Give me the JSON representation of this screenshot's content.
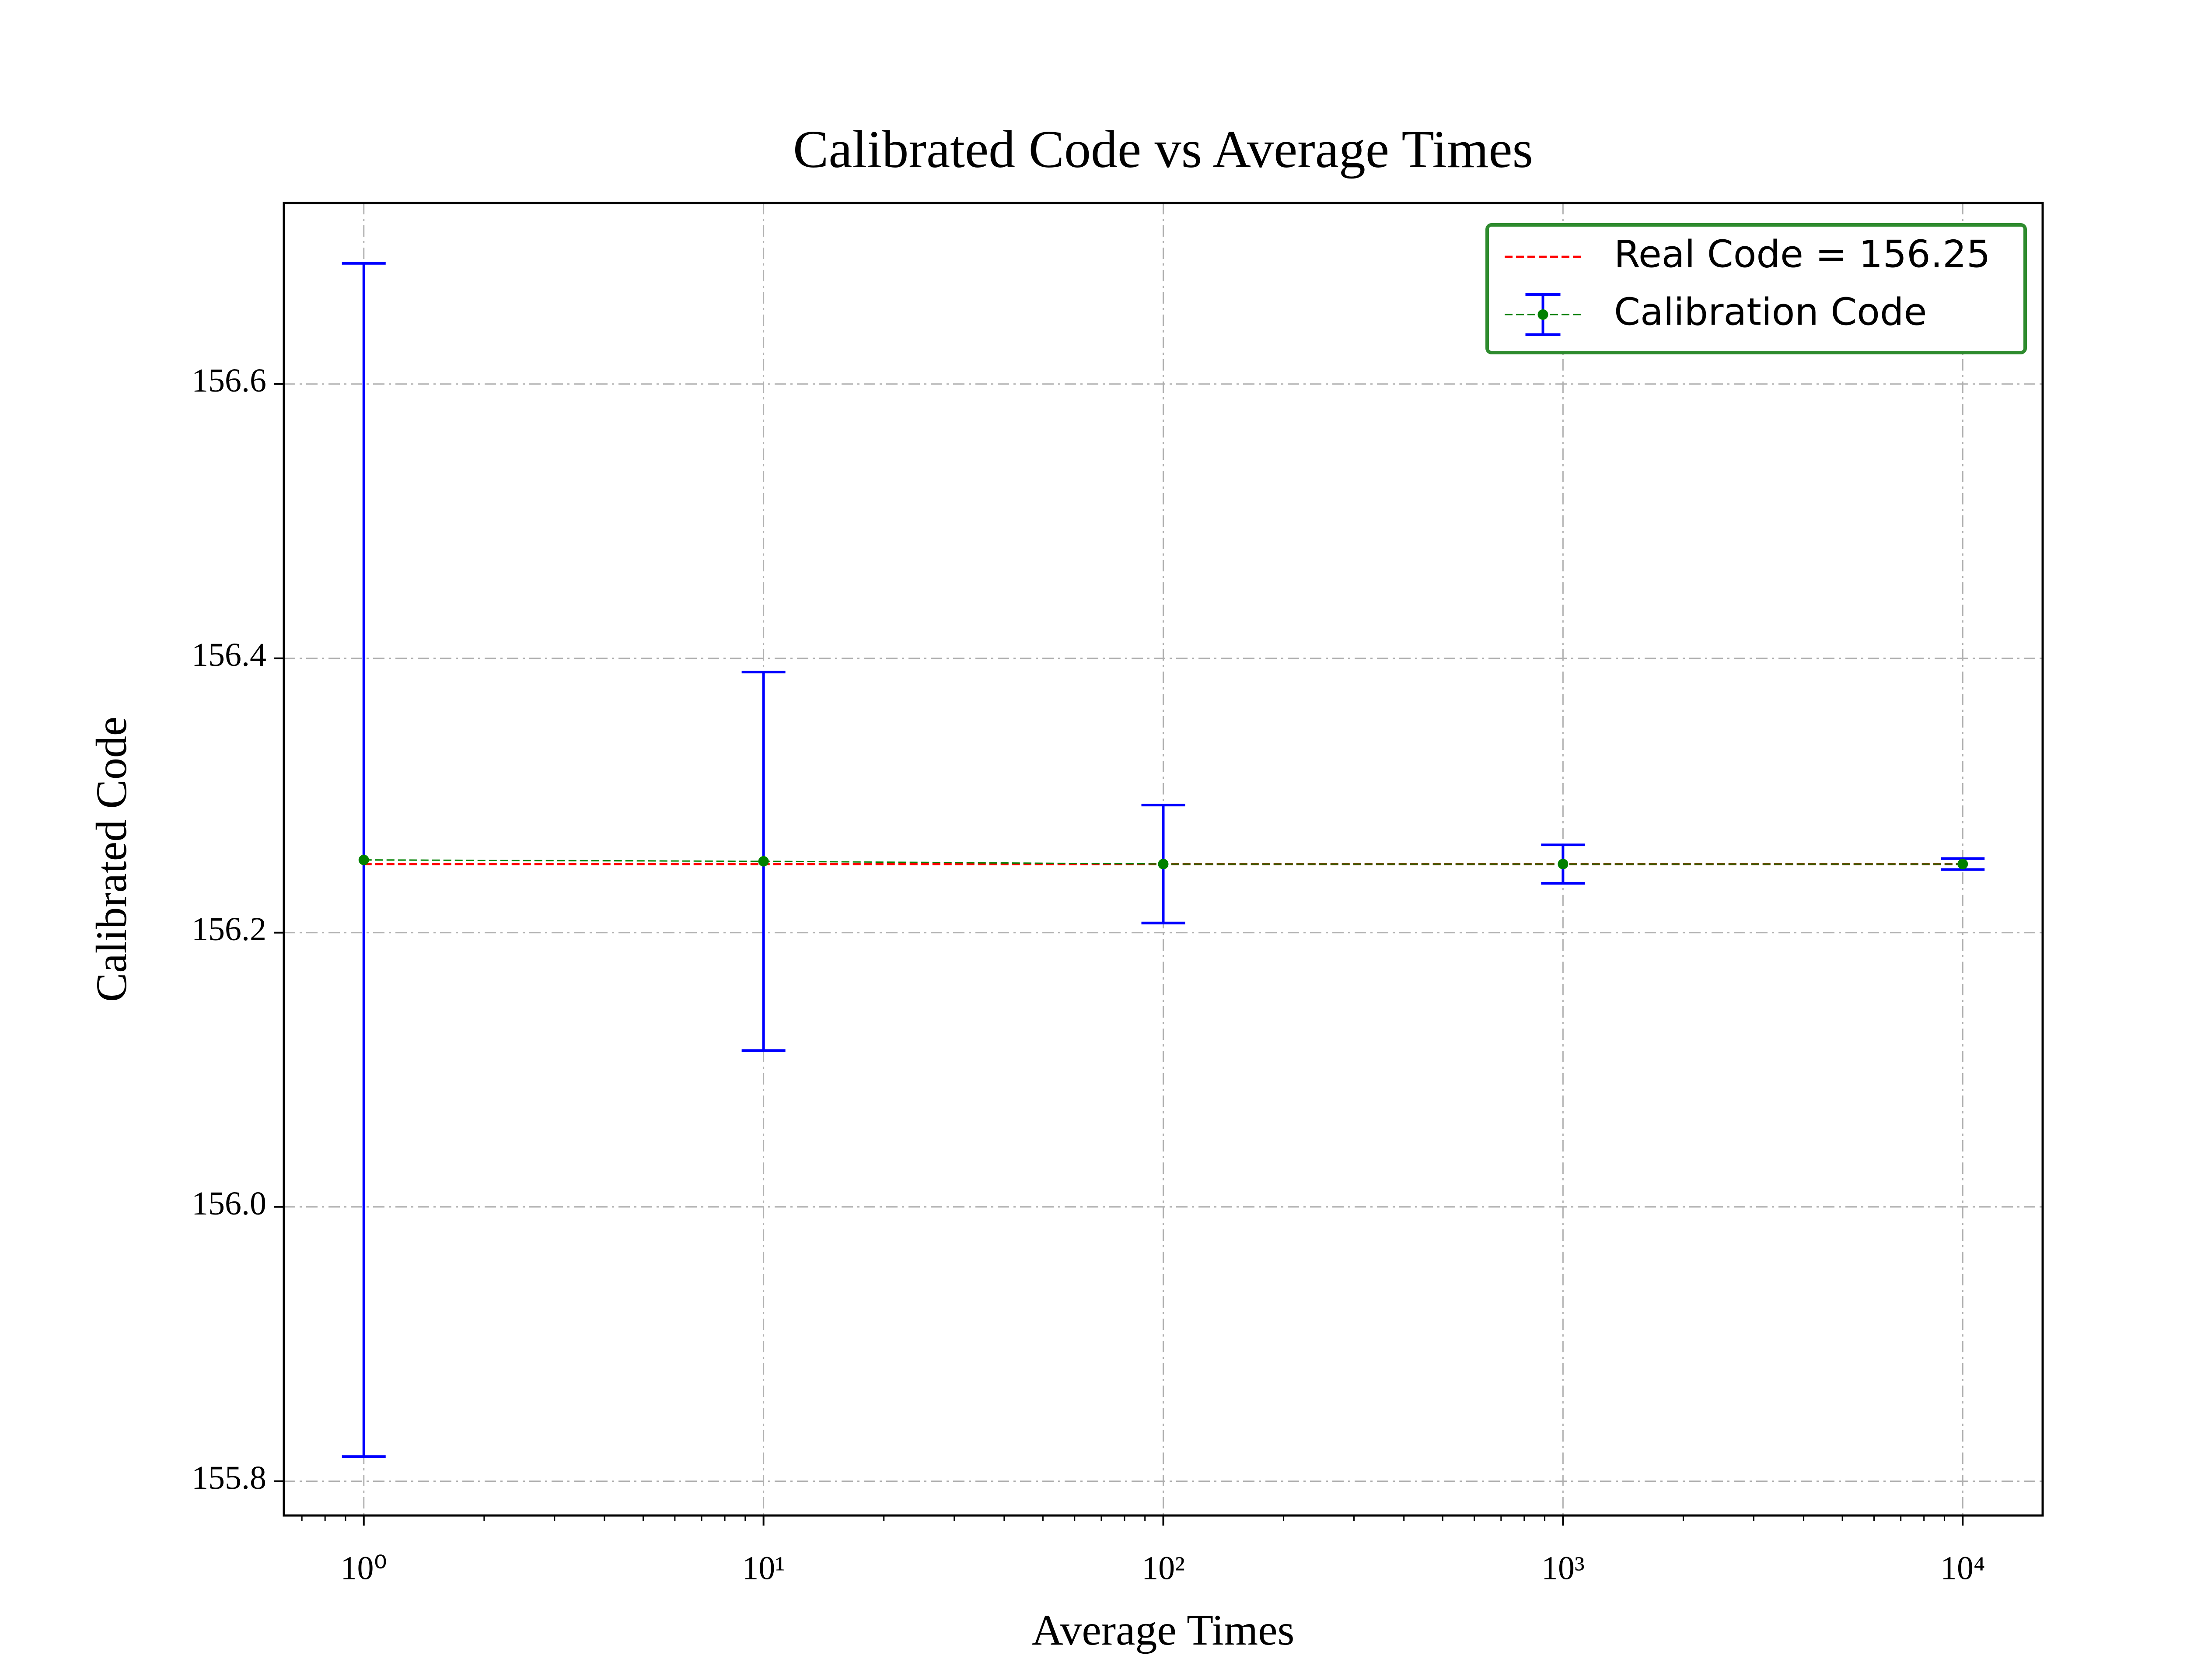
{
  "chart_data": {
    "type": "errorbar",
    "title": "Calibrated Code vs Average Times",
    "x_label": "Average Times",
    "y_label": "Calibrated Code",
    "xscale": "log",
    "grid": true,
    "legend": "upper right",
    "legend_edge_color": "#2e8b2e",
    "xlim": [
      0.631,
      15849
    ],
    "ylim": [
      155.775,
      156.732
    ],
    "xticks": [
      {
        "value": 1,
        "label": "10⁰"
      },
      {
        "value": 10,
        "label": "10¹"
      },
      {
        "value": 100,
        "label": "10²"
      },
      {
        "value": 1000,
        "label": "10³"
      },
      {
        "value": 10000,
        "label": "10⁴"
      }
    ],
    "xminorticks": [
      0.7,
      0.8,
      0.9,
      2,
      3,
      4,
      5,
      6,
      7,
      8,
      9,
      20,
      30,
      40,
      50,
      60,
      70,
      80,
      90,
      200,
      300,
      400,
      500,
      600,
      700,
      800,
      900,
      2000,
      3000,
      4000,
      5000,
      6000,
      7000,
      8000,
      9000
    ],
    "yticks": [
      155.8,
      {
        "value": 156,
        "label": "156.0"
      },
      156.2,
      156.4,
      156.6
    ],
    "series": [
      {
        "name": "Real Code = 156.25",
        "color": "#ff0000",
        "style": "dashed",
        "x": [
          1,
          10000
        ],
        "values": [
          156.25,
          156.25
        ]
      },
      {
        "name": "Calibration Code",
        "color": "#008000",
        "error_color": "#0000ff",
        "style": "dashed",
        "x": [
          1,
          10,
          100,
          1000,
          10000
        ],
        "values": [
          156.253,
          156.252,
          156.25,
          156.25,
          156.25
        ],
        "errors": [
          0.435,
          0.138,
          0.043,
          0.014,
          0.004
        ]
      }
    ]
  }
}
